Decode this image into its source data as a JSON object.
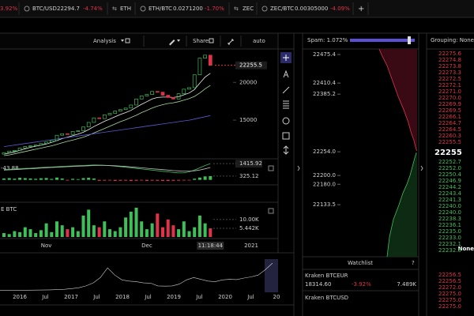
{
  "top_bar": {
    "tabs": [
      {
        "change": "3.92%"
      },
      {
        "pair": "BTC/USD",
        "price": "22294.7",
        "change": "-4.74%"
      },
      {
        "pair": "ETH"
      },
      {
        "pair": "ETH/BTC",
        "price": "0.0271200",
        "change": "-1.70%"
      },
      {
        "pair": "ZEC"
      },
      {
        "pair": "ZEC/BTC",
        "price": "0.00305000",
        "change": "-4.09%"
      }
    ],
    "add": "+"
  },
  "toolbar": {
    "analysis": "Analysis",
    "share": "Share",
    "scale": "auto"
  },
  "main": {
    "ylim": [
      10200,
      24000
    ],
    "yticks": [
      20000,
      15000
    ],
    "price_label": 22255.5,
    "colors": {
      "up": "#3fbf5a",
      "down": "#e0334a"
    },
    "categories": [
      null,
      null,
      null,
      null,
      null,
      null,
      null,
      null,
      "Nov",
      null,
      null,
      null,
      null,
      null,
      null,
      null,
      null,
      null,
      null,
      null,
      null,
      null,
      null,
      null,
      null,
      null,
      null,
      "Dec",
      null,
      null,
      null,
      null,
      null,
      null,
      null,
      null,
      null,
      null,
      null,
      "11:18:44"
    ],
    "future_label": "2021",
    "candles": {
      "open": [
        10500,
        10700,
        10900,
        11000,
        11300,
        11500,
        11600,
        11700,
        11900,
        12100,
        12300,
        13000,
        13200,
        13100,
        13500,
        13600,
        14100,
        14700,
        15300,
        15200,
        15700,
        15900,
        16200,
        16400,
        16600,
        17000,
        17800,
        18200,
        18400,
        18800,
        18700,
        18300,
        18000,
        17800,
        18500,
        19100,
        19300,
        21000,
        23200,
        23600
      ],
      "close": [
        10700,
        10900,
        11000,
        11300,
        11500,
        11600,
        11700,
        11900,
        12100,
        12300,
        13000,
        13200,
        13100,
        13500,
        13600,
        14100,
        14700,
        15300,
        15200,
        15700,
        15900,
        16200,
        16400,
        16600,
        17000,
        17800,
        18200,
        18400,
        18800,
        18700,
        18300,
        18000,
        17800,
        18500,
        19100,
        19300,
        21000,
        23200,
        23600,
        22255.5
      ]
    },
    "ma": [
      {
        "color": "#f0f0f0",
        "values": [
          10500,
          10650,
          10800,
          11000,
          11200,
          11400,
          11550,
          11700,
          11850,
          12050,
          12300,
          12550,
          12750,
          12950,
          13150,
          13400,
          13750,
          14150,
          14500,
          14850,
          15150,
          15450,
          15750,
          16000,
          16300,
          16700,
          17100,
          17450,
          17800,
          18000,
          18050,
          18050,
          18000,
          18100,
          18350,
          18600,
          19050,
          19900,
          20700,
          21200
        ]
      },
      {
        "color": "#a8d8a0",
        "values": [
          10300,
          10400,
          10550,
          10700,
          10850,
          11000,
          11150,
          11300,
          11450,
          11600,
          11800,
          12000,
          12200,
          12350,
          12550,
          12750,
          13000,
          13300,
          13600,
          13900,
          14200,
          14500,
          14800,
          15050,
          15350,
          15650,
          16000,
          16300,
          16600,
          16850,
          17050,
          17200,
          17300,
          17450,
          17650,
          17850,
          18150,
          18600,
          19150,
          19600
        ]
      },
      {
        "color": "#5a5ad0",
        "values": [
          11500,
          11600,
          11700,
          11800,
          11900,
          12000,
          12100,
          12200,
          12300,
          12400,
          12500,
          12600,
          12700,
          12800,
          12900,
          13000,
          13100,
          13200,
          13300,
          13400,
          13500,
          13600,
          13700,
          13800,
          13900,
          14000,
          14100,
          14200,
          14300,
          14400,
          14500,
          14600,
          14700,
          14800,
          14900,
          15000,
          15150,
          15300,
          15450,
          15600
        ]
      }
    ]
  },
  "macd": {
    "ylim": [
      -300,
      1700
    ],
    "yticks": [
      1415.92,
      325.12
    ],
    "left_label": "-43.88",
    "hist": [
      120,
      150,
      100,
      180,
      150,
      120,
      90,
      140,
      160,
      80,
      200,
      120,
      -60,
      90,
      60,
      150,
      180,
      120,
      -80,
      -70,
      -60,
      -90,
      -80,
      -70,
      -100,
      -80,
      -60,
      -90,
      -70,
      -80,
      -90,
      -100,
      -80,
      -70,
      -60,
      -50,
      100,
      200,
      300,
      325.12
    ],
    "lines": [
      {
        "color": "#3fbf5a",
        "values": [
          900,
          920,
          950,
          980,
          1000,
          1020,
          1050,
          1080,
          1100,
          1120,
          1150,
          1180,
          1200,
          1220,
          1240,
          1260,
          1280,
          1300,
          1290,
          1270,
          1240,
          1200,
          1150,
          1100,
          1050,
          1000,
          950,
          900,
          850,
          800,
          750,
          700,
          650,
          600,
          620,
          700,
          850,
          1050,
          1250,
          1415.92
        ]
      },
      {
        "color": "#bbbbbb",
        "values": [
          850,
          870,
          890,
          920,
          950,
          970,
          1000,
          1030,
          1060,
          1080,
          1100,
          1120,
          1150,
          1170,
          1190,
          1210,
          1230,
          1250,
          1260,
          1260,
          1250,
          1230,
          1200,
          1170,
          1130,
          1090,
          1050,
          1010,
          970,
          930,
          890,
          850,
          810,
          780,
          760,
          760,
          790,
          860,
          960,
          1080
        ]
      }
    ]
  },
  "volume": {
    "label": "E BTC",
    "ylim": [
      1000,
      18000
    ],
    "yticks": [
      {
        "value": 10000,
        "label": "10.00K"
      },
      {
        "value": 5442,
        "label": "5.442K"
      }
    ],
    "values": [
      3000,
      2500,
      4000,
      3500,
      6000,
      5000,
      3000,
      4500,
      8000,
      3500,
      9000,
      7000,
      5000,
      6000,
      4000,
      12000,
      15000,
      7000,
      6000,
      9000,
      5000,
      4000,
      6000,
      11000,
      14000,
      16000,
      9000,
      5000,
      8000,
      13000,
      6000,
      10000,
      7000,
      5000,
      9000,
      4000,
      6000,
      12000,
      8000,
      5442
    ]
  },
  "overview": {
    "labels": [
      "2016",
      "Jul",
      "2017",
      "Jul",
      "2018",
      "Jul",
      "2019",
      "Jul",
      "2020",
      "Jul",
      "20"
    ],
    "ylim": [
      0,
      25000
    ],
    "values": [
      380,
      390,
      400,
      420,
      450,
      500,
      600,
      700,
      900,
      1200,
      1800,
      2500,
      4000,
      6500,
      11000,
      19000,
      13000,
      9000,
      8000,
      7500,
      6500,
      6300,
      4000,
      3800,
      4000,
      5500,
      9000,
      11000,
      9500,
      8000,
      7500,
      9000,
      9500,
      9300,
      10500,
      11500,
      13000,
      17500,
      23000
    ]
  },
  "depth": {
    "span_label": "Spam: 1.072%",
    "ylim": [
      22015,
      22488
    ],
    "xlim": [
      0,
      140
    ],
    "yticks": [
      22475.4,
      22410.4,
      22385.2,
      {
        "value": 22254,
        "label": "22254.0"
      },
      {
        "value": 22200,
        "label": "22200.0"
      },
      {
        "value": 22180,
        "label": "22180.0"
      },
      22133.5
    ],
    "asks": {
      "price": [
        22488,
        22475,
        22450,
        22420,
        22400,
        22380,
        22350,
        22320,
        22300,
        22280,
        22265,
        22256
      ],
      "depth": [
        48,
        45,
        38,
        32,
        28,
        24,
        17,
        11,
        8,
        4,
        2,
        0.5
      ]
    },
    "bids": {
      "price": [
        22252,
        22240,
        22220,
        22200,
        22180,
        22160,
        22133,
        22100,
        22060,
        22015
      ],
      "depth": [
        1,
        3,
        6,
        9,
        13,
        18,
        23,
        30,
        35,
        38
      ]
    }
  },
  "watchlist": {
    "title": "Watchlist",
    "help": "?",
    "rows": [
      {
        "name": "Kraken BTCEUR",
        "price": "18314.60",
        "change": "-3.92%",
        "volume": "7.489K"
      },
      {
        "name": "Kraken BTCUSD"
      }
    ]
  },
  "orderbook": {
    "grouping": "Grouping: None",
    "asks": [
      "22275.6",
      "22274.8",
      "22273.8",
      "22273.3",
      "22272.5",
      "22272.1",
      "22271.0",
      "22270.0",
      "22269.9",
      "22269.5",
      "22266.1",
      "22264.7",
      "22264.5",
      "22260.3",
      "22255.5"
    ],
    "mid": "22255",
    "bids": [
      "22252.7",
      "22252.0",
      "22250.4",
      "22246.9",
      "22244.2",
      "22243.4",
      "22241.3",
      "22240.0",
      "22240.0",
      "22238.3",
      "22236.1",
      "22235.0",
      "22233.0",
      "22232.1",
      "22232.0"
    ],
    "aside": "None",
    "trades": [
      "22256.5",
      "22256.5",
      "22272.0",
      "22275.0",
      "22275.0",
      "22275.0"
    ]
  }
}
